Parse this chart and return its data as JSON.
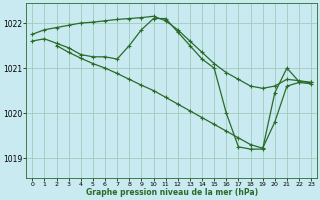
{
  "title": "Graphe pression niveau de la mer (hPa)",
  "xlim": [
    -0.5,
    23.5
  ],
  "ylim": [
    1018.55,
    1022.45
  ],
  "yticks": [
    1019,
    1020,
    1021,
    1022
  ],
  "xticks": [
    0,
    1,
    2,
    3,
    4,
    5,
    6,
    7,
    8,
    9,
    10,
    11,
    12,
    13,
    14,
    15,
    16,
    17,
    18,
    19,
    20,
    21,
    22,
    23
  ],
  "bg_color": "#c8eaf0",
  "line_color": "#2a6b2a",
  "grid_color": "#a0ccbb",
  "lines": [
    {
      "x": [
        0,
        1,
        2,
        3,
        4,
        5,
        6,
        7,
        8,
        9,
        10,
        11,
        12,
        13,
        14,
        15,
        16,
        17,
        18,
        19,
        20,
        21,
        22,
        23
      ],
      "y": [
        1021.75,
        1021.85,
        1021.9,
        1021.95,
        1022.0,
        1022.02,
        1022.05,
        1022.08,
        1022.1,
        1022.12,
        1022.15,
        1022.05,
        1021.85,
        1021.6,
        1021.35,
        1021.1,
        1020.9,
        1020.75,
        1020.6,
        1020.55,
        1020.6,
        1020.75,
        1020.72,
        1020.68
      ]
    },
    {
      "x": [
        0,
        1,
        2,
        3,
        4,
        5,
        6,
        7,
        8,
        9,
        10,
        11,
        12,
        13,
        14,
        15,
        16,
        17,
        18,
        19,
        20,
        21,
        22,
        23
      ],
      "y": [
        1021.6,
        1021.65,
        1021.55,
        1021.45,
        1021.3,
        1021.25,
        1021.25,
        1021.2,
        1021.5,
        1021.85,
        1022.1,
        1022.1,
        1021.8,
        1021.5,
        1021.2,
        1021.0,
        1020.0,
        1019.25,
        1019.2,
        1019.2,
        1020.45,
        1021.0,
        1020.7,
        1020.68
      ]
    },
    {
      "x": [
        2,
        3,
        4,
        5,
        6,
        7,
        8,
        9,
        10,
        11,
        12,
        13,
        14,
        15,
        16,
        17,
        18,
        19,
        20,
        21,
        22,
        23
      ],
      "y": [
        1021.5,
        1021.35,
        1021.22,
        1021.1,
        1021.0,
        1020.88,
        1020.75,
        1020.62,
        1020.5,
        1020.35,
        1020.2,
        1020.05,
        1019.9,
        1019.75,
        1019.6,
        1019.45,
        1019.3,
        1019.22,
        1019.8,
        1020.6,
        1020.68,
        1020.65
      ]
    }
  ]
}
